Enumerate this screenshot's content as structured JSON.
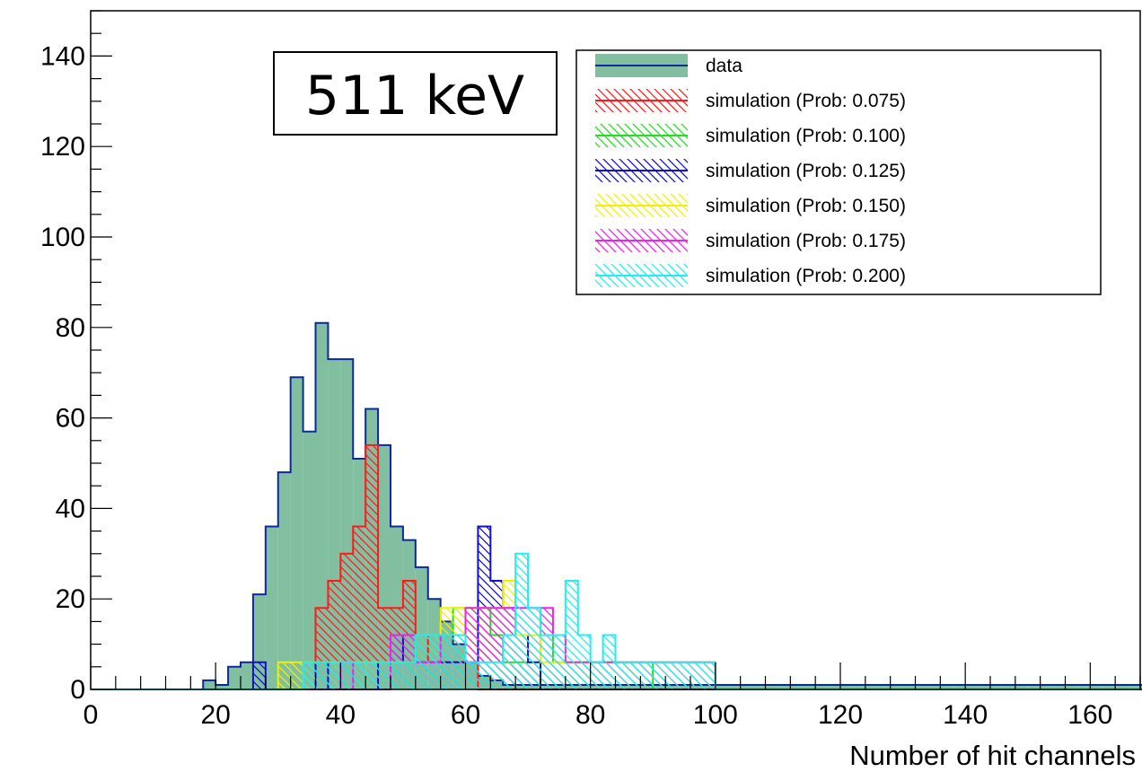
{
  "chart_data": {
    "type": "histogram",
    "xlabel": "Number of hit channels",
    "ylabel": "",
    "xlim": [
      0,
      168
    ],
    "ylim": [
      0,
      150
    ],
    "bin_width": 2,
    "x_ticks": [
      0,
      20,
      40,
      60,
      80,
      100,
      120,
      140,
      160
    ],
    "y_ticks": [
      0,
      20,
      40,
      60,
      80,
      100,
      120,
      140
    ],
    "annotation": "511 keV",
    "legend_position": "top-right",
    "series": [
      {
        "name": "data",
        "line_color": "#0a2a9a",
        "fill_color": "#82bfa0",
        "fill_style": "solid",
        "bin_edges_start": 18,
        "counts": [
          2,
          1,
          5,
          6,
          21,
          36,
          48,
          69,
          57,
          81,
          73,
          73,
          51,
          62,
          54,
          36,
          33,
          27,
          20,
          15,
          10,
          6,
          3,
          2,
          1,
          1,
          1,
          1,
          1,
          1,
          1,
          1,
          1,
          1,
          1,
          1,
          1,
          1,
          1,
          1,
          1,
          1,
          1,
          1,
          1,
          1,
          1,
          1,
          1,
          1,
          1,
          1,
          1,
          1,
          1,
          1,
          1,
          1,
          1,
          1,
          1,
          1,
          1,
          1,
          1,
          1,
          1,
          1,
          1,
          1,
          1,
          1,
          1,
          1,
          1,
          1,
          0,
          0,
          0,
          0,
          0,
          0
        ]
      },
      {
        "name": "simulation (Prob: 0.075)",
        "line_color": "#ff1a1a",
        "fill_style": "hatch",
        "bin_edges_start": 36,
        "counts": [
          18,
          24,
          30,
          36,
          54,
          18,
          18,
          24,
          12,
          6,
          6,
          6,
          6
        ]
      },
      {
        "name": "simulation (Prob: 0.100)",
        "line_color": "#22dd22",
        "fill_style": "hatch",
        "bin_edges_start": 48,
        "counts": [
          6,
          6,
          12,
          12,
          12,
          18,
          18,
          18,
          12,
          6,
          6,
          6,
          12,
          6,
          6,
          6,
          6,
          6,
          6,
          6,
          6
        ]
      },
      {
        "name": "simulation (Prob: 0.125)",
        "line_color": "#1010cc",
        "fill_style": "hatch",
        "bin_edges_start": 26,
        "counts": [
          6,
          0,
          0,
          0,
          0,
          6,
          0,
          0,
          0,
          0,
          6,
          12,
          6,
          6,
          6,
          6,
          6,
          6,
          36,
          24,
          18,
          12,
          6
        ]
      },
      {
        "name": "simulation (Prob: 0.150)",
        "line_color": "#f0f000",
        "fill_style": "hatch",
        "bin_edges_start": 30,
        "counts": [
          6,
          6,
          6,
          6,
          6,
          6,
          6,
          6,
          6,
          6,
          6,
          12,
          12,
          18,
          18,
          18,
          18,
          18,
          24,
          12,
          12,
          6,
          6,
          6,
          6,
          6,
          6,
          6,
          6,
          6,
          6,
          6,
          6,
          6,
          6
        ]
      },
      {
        "name": "simulation (Prob: 0.175)",
        "line_color": "#ee22ee",
        "fill_style": "hatch",
        "bin_edges_start": 40,
        "counts": [
          6,
          0,
          0,
          0,
          12,
          12,
          6,
          6,
          12,
          12,
          18,
          18,
          18,
          18,
          18,
          18,
          18,
          12,
          6,
          6,
          6,
          6,
          6,
          6,
          6,
          6,
          6,
          6,
          6,
          6
        ]
      },
      {
        "name": "simulation (Prob: 0.200)",
        "line_color": "#22eeee",
        "fill_style": "hatch",
        "bin_edges_start": 34,
        "counts": [
          6,
          6,
          6,
          6,
          6,
          6,
          6,
          6,
          6,
          12,
          12,
          12,
          12,
          6,
          6,
          6,
          12,
          30,
          18,
          12,
          12,
          24,
          12,
          6,
          12,
          6,
          6,
          6,
          6,
          6,
          6,
          6,
          6
        ]
      }
    ]
  }
}
